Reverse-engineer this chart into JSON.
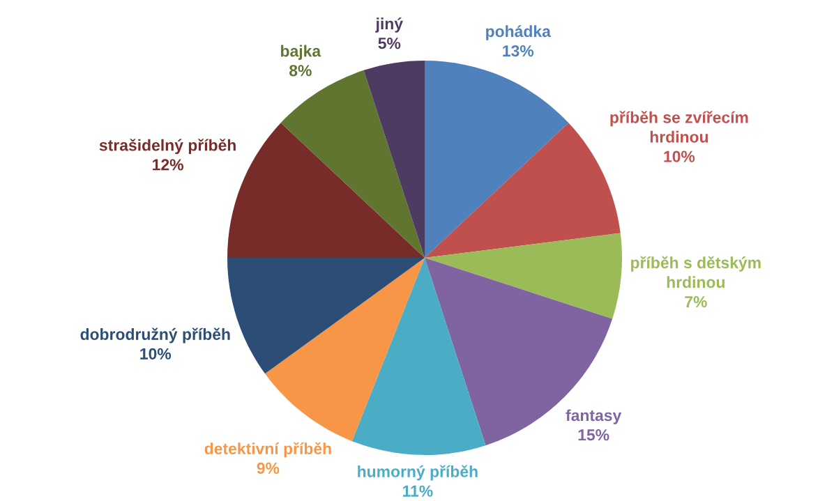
{
  "chart_data": {
    "type": "pie",
    "categories": [
      "pohádka",
      "příběh se zvířecím hrdinou",
      "příběh s dětským hrdinou",
      "fantasy",
      "humorný příběh",
      "detektivní příběh",
      "dobrodružný příběh",
      "strašidelný příběh",
      "bajka",
      "jiný"
    ],
    "values": [
      13,
      10,
      7,
      15,
      11,
      9,
      10,
      12,
      8,
      5
    ],
    "colors": [
      "#4f81bd",
      "#c0504d",
      "#9bbb59",
      "#8064a2",
      "#4bacc6",
      "#f79646",
      "#2c4d75",
      "#772c2a",
      "#5f7530",
      "#4d3b62"
    ],
    "value_labels": [
      "13%",
      "10%",
      "7%",
      "15%",
      "11%",
      "9%",
      "10%",
      "12%",
      "8%",
      "5%"
    ]
  }
}
